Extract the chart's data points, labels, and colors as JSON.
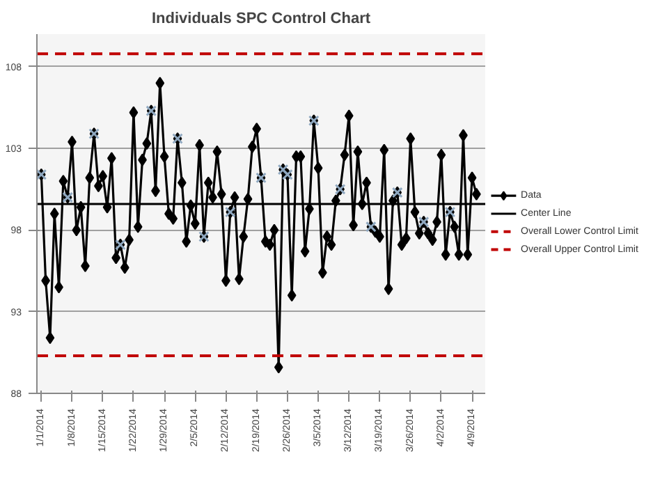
{
  "chart_data": {
    "type": "line",
    "title": "Individuals SPC Control Chart",
    "x": [
      "2014-01-01",
      "2014-01-02",
      "2014-01-03",
      "2014-01-04",
      "2014-01-05",
      "2014-01-06",
      "2014-01-07",
      "2014-01-08",
      "2014-01-09",
      "2014-01-10",
      "2014-01-11",
      "2014-01-12",
      "2014-01-13",
      "2014-01-14",
      "2014-01-15",
      "2014-01-16",
      "2014-01-17",
      "2014-01-18",
      "2014-01-19",
      "2014-01-20",
      "2014-01-21",
      "2014-01-22",
      "2014-01-23",
      "2014-01-24",
      "2014-01-25",
      "2014-01-26",
      "2014-01-27",
      "2014-01-28",
      "2014-01-29",
      "2014-01-30",
      "2014-01-31",
      "2014-02-01",
      "2014-02-02",
      "2014-02-03",
      "2014-02-04",
      "2014-02-05",
      "2014-02-06",
      "2014-02-07",
      "2014-02-08",
      "2014-02-09",
      "2014-02-10",
      "2014-02-11",
      "2014-02-12",
      "2014-02-13",
      "2014-02-14",
      "2014-02-15",
      "2014-02-16",
      "2014-02-17",
      "2014-02-18",
      "2014-02-19",
      "2014-02-20",
      "2014-02-21",
      "2014-02-22",
      "2014-02-23",
      "2014-02-24",
      "2014-02-25",
      "2014-02-26",
      "2014-02-27",
      "2014-02-28",
      "2014-03-01",
      "2014-03-02",
      "2014-03-03",
      "2014-03-04",
      "2014-03-05",
      "2014-03-06",
      "2014-03-07",
      "2014-03-08",
      "2014-03-09",
      "2014-03-10",
      "2014-03-11",
      "2014-03-12",
      "2014-03-13",
      "2014-03-14",
      "2014-03-15",
      "2014-03-16",
      "2014-03-17",
      "2014-03-18",
      "2014-03-19",
      "2014-03-20",
      "2014-03-21",
      "2014-03-22",
      "2014-03-23",
      "2014-03-24",
      "2014-03-25",
      "2014-03-26",
      "2014-03-27",
      "2014-03-28",
      "2014-03-29",
      "2014-03-30",
      "2014-03-31",
      "2014-04-01",
      "2014-04-02",
      "2014-04-03",
      "2014-04-04",
      "2014-04-05",
      "2014-04-06",
      "2014-04-07",
      "2014-04-08",
      "2014-04-09",
      "2014-04-10"
    ],
    "series": [
      {
        "name": "Data",
        "color": "#000000",
        "marker": "diamond",
        "values": [
          101.4,
          94.9,
          91.4,
          99.0,
          94.5,
          101.0,
          100.0,
          103.4,
          98.0,
          99.4,
          95.8,
          101.2,
          103.9,
          100.7,
          101.3,
          99.4,
          102.4,
          96.3,
          97.1,
          95.7,
          97.4,
          105.2,
          98.2,
          102.3,
          103.3,
          105.3,
          100.4,
          107.0,
          102.5,
          99.0,
          98.7,
          103.6,
          100.9,
          97.3,
          99.5,
          98.4,
          103.2,
          97.6,
          100.9,
          100.0,
          102.8,
          100.2,
          94.9,
          99.1,
          100.0,
          95.0,
          97.6,
          99.9,
          103.1,
          104.2,
          101.2,
          97.3,
          97.1,
          98.0,
          89.6,
          101.7,
          101.4,
          94.0,
          102.5,
          102.5,
          96.7,
          99.3,
          104.7,
          101.8,
          95.4,
          97.6,
          97.1,
          99.8,
          100.5,
          102.6,
          105.0,
          98.3,
          102.8,
          99.6,
          100.9,
          98.2,
          97.9,
          97.6,
          102.9,
          94.4,
          99.8,
          100.3,
          97.1,
          97.5,
          103.6,
          99.1,
          97.8,
          98.5,
          97.8,
          97.4,
          98.5,
          102.6,
          96.5,
          99.1,
          98.2,
          96.5,
          103.8,
          96.5,
          101.2,
          100.2
        ]
      },
      {
        "type": "scatter",
        "color": "#8fa8c0",
        "marker": "cross",
        "x": [
          "2014-01-01",
          "2014-01-07",
          "2014-01-13",
          "2014-01-19",
          "2014-01-26",
          "2014-02-01",
          "2014-02-07",
          "2014-02-13",
          "2014-02-20",
          "2014-02-25",
          "2014-02-26",
          "2014-03-04",
          "2014-03-10",
          "2014-03-17",
          "2014-03-23",
          "2014-03-29",
          "2014-04-04"
        ],
        "values": [
          101.4,
          100.0,
          103.9,
          97.1,
          105.3,
          103.6,
          97.6,
          99.1,
          101.2,
          101.7,
          101.4,
          104.7,
          100.5,
          98.2,
          100.3,
          98.5,
          99.1
        ]
      }
    ],
    "ref_lines": [
      {
        "axis": "y",
        "value": 99.6,
        "label": "Center Line",
        "color": "#000000",
        "line_style": "solid"
      },
      {
        "axis": "y",
        "value": 90.3,
        "label": "Overall Lower Control Limit",
        "color": "#c00000",
        "line_style": "dashed"
      },
      {
        "axis": "y",
        "value": 108.8,
        "label": "Overall Upper Control Limit",
        "color": "#c00000",
        "line_style": "dashed"
      }
    ],
    "xlim": [
      "2013-12-31",
      "2014-04-12"
    ],
    "xticks": [
      {
        "value": "2014-01-01",
        "label": "1/1/2014"
      },
      {
        "value": "2014-01-08",
        "label": "1/8/2014"
      },
      {
        "value": "2014-01-15",
        "label": "1/15/2014"
      },
      {
        "value": "2014-01-22",
        "label": "1/22/2014"
      },
      {
        "value": "2014-01-29",
        "label": "1/29/2014"
      },
      {
        "value": "2014-02-05",
        "label": "2/5/2014"
      },
      {
        "value": "2014-02-12",
        "label": "2/12/2014"
      },
      {
        "value": "2014-02-19",
        "label": "2/19/2014"
      },
      {
        "value": "2014-02-26",
        "label": "2/26/2014"
      },
      {
        "value": "2014-03-05",
        "label": "3/5/2014"
      },
      {
        "value": "2014-03-12",
        "label": "3/12/2014"
      },
      {
        "value": "2014-03-19",
        "label": "3/19/2014"
      },
      {
        "value": "2014-03-26",
        "label": "3/26/2014"
      },
      {
        "value": "2014-04-02",
        "label": "4/2/2014"
      },
      {
        "value": "2014-04-09",
        "label": "4/9/2014"
      }
    ],
    "ylim": [
      88,
      110
    ],
    "yticks": [
      88,
      93,
      98,
      103,
      108
    ],
    "grid": "y",
    "legend": "right",
    "line_style": "solid"
  }
}
